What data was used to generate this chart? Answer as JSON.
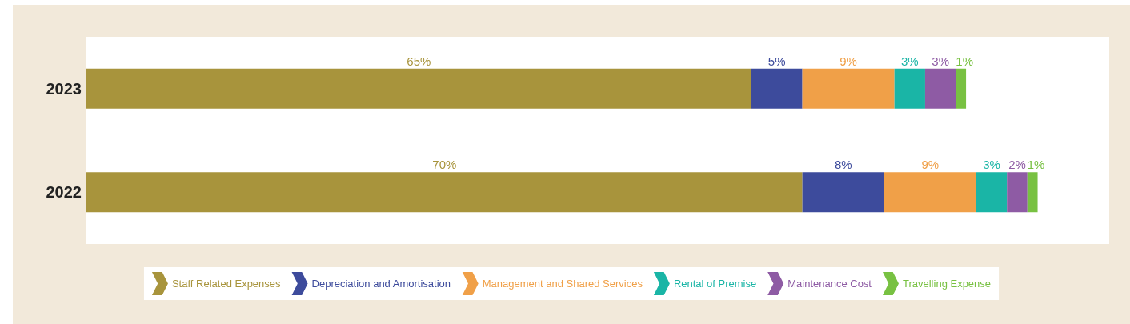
{
  "chart_data": {
    "type": "bar",
    "orientation": "horizontal",
    "stacked": true,
    "categories": [
      "2023",
      "2022"
    ],
    "series": [
      {
        "name": "Staff Related Expenses",
        "color": "#a8943c",
        "values": [
          65,
          70
        ],
        "value_labels": [
          "65%",
          "70%"
        ]
      },
      {
        "name": "Depreciation and Amortisation",
        "color": "#3d4b9c",
        "values": [
          5,
          8
        ],
        "value_labels": [
          "5%",
          "8%"
        ]
      },
      {
        "name": "Management and Shared Services",
        "color": "#f0a048",
        "values": [
          9,
          9
        ],
        "value_labels": [
          "9%",
          "9%"
        ]
      },
      {
        "name": "Rental of Premise",
        "color": "#1ab5a6",
        "values": [
          3,
          3
        ],
        "value_labels": [
          "3%",
          "3%"
        ]
      },
      {
        "name": "Maintenance Cost",
        "color": "#8e5ba4",
        "values": [
          3,
          2
        ],
        "value_labels": [
          "3%",
          "2%"
        ]
      },
      {
        "name": "Travelling Expense",
        "color": "#78c142",
        "values": [
          1,
          1
        ],
        "value_labels": [
          "1%",
          "1%"
        ]
      }
    ],
    "xlim": [
      0,
      100
    ],
    "tick_labels": "y",
    "legend": "bottom"
  }
}
